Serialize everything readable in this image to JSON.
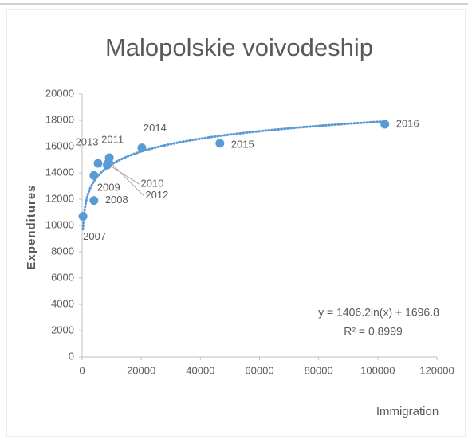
{
  "chart_data": {
    "type": "scatter",
    "title": "Malopolskie voivodeship",
    "x_label": "Immigration",
    "y_label": "Expenditures",
    "series": [
      {
        "name": "Expenditures",
        "color": "#5b9bd5",
        "x": [
          300,
          4000,
          4000,
          8500,
          9200,
          9000,
          5400,
          20200,
          46600,
          102400
        ],
        "values": [
          10700,
          11900,
          13800,
          14600,
          15150,
          14800,
          14730,
          15900,
          16250,
          17700
        ],
        "labels": [
          "2007",
          "2008",
          "2009",
          "2010",
          "2011",
          "2012",
          "2013",
          "2014",
          "2015",
          "2016"
        ]
      }
    ],
    "trendline": {
      "kind": "log",
      "a": 1406.2,
      "b": 1696.8,
      "color": "#5b9bd5",
      "equation": "y = 1406.2ln(x) + 1696.8",
      "r_squared": "R² = 0.8999"
    },
    "xlim": [
      0,
      120000
    ],
    "xticks": [
      0,
      20000,
      40000,
      60000,
      80000,
      100000,
      120000
    ],
    "ylim": [
      0,
      20000
    ],
    "yticks": [
      0,
      2000,
      4000,
      6000,
      8000,
      10000,
      12000,
      14000,
      16000,
      18000,
      20000
    ],
    "grid": false
  }
}
